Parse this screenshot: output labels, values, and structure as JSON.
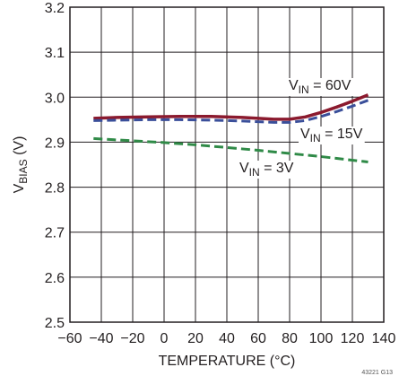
{
  "chart_data": {
    "type": "line",
    "title": "",
    "xlabel": "TEMPERATURE (°C)",
    "ylabel": {
      "main": "V",
      "sub": "BIAS",
      "unit": " (V)"
    },
    "xlim": [
      -60,
      140
    ],
    "ylim": [
      2.5,
      3.2
    ],
    "x_ticks": [
      -60,
      -40,
      -20,
      0,
      20,
      40,
      60,
      80,
      100,
      120,
      140
    ],
    "y_ticks": [
      2.5,
      2.6,
      2.7,
      2.8,
      2.9,
      3.0,
      3.1,
      3.2
    ],
    "grid": true,
    "legend": "none",
    "figure_id": "43221 G13",
    "series": [
      {
        "label": {
          "main": "V",
          "sub": "IN",
          "rest": " = 60V"
        },
        "color": "#8b1a2e",
        "style": "solid",
        "x": [
          -45,
          -30,
          -10,
          10,
          30,
          50,
          70,
          80,
          90,
          100,
          110,
          120,
          130
        ],
        "y": [
          2.953,
          2.955,
          2.956,
          2.957,
          2.957,
          2.955,
          2.951,
          2.951,
          2.956,
          2.966,
          2.978,
          2.991,
          3.005
        ]
      },
      {
        "label": {
          "main": "V",
          "sub": "IN",
          "rest": " = 15V"
        },
        "color": "#3a4f9a",
        "style": "dashed",
        "x": [
          -45,
          -30,
          -10,
          10,
          30,
          50,
          70,
          80,
          90,
          100,
          110,
          120,
          130
        ],
        "y": [
          2.948,
          2.949,
          2.95,
          2.95,
          2.949,
          2.947,
          2.944,
          2.944,
          2.948,
          2.957,
          2.968,
          2.98,
          2.993
        ]
      },
      {
        "label": {
          "main": "V",
          "sub": "IN",
          "rest": " = 3V"
        },
        "color": "#2f8a47",
        "style": "dashed",
        "x": [
          -45,
          -20,
          0,
          20,
          40,
          60,
          80,
          100,
          130
        ],
        "y": [
          2.908,
          2.903,
          2.899,
          2.894,
          2.888,
          2.882,
          2.875,
          2.868,
          2.856
        ]
      }
    ]
  }
}
